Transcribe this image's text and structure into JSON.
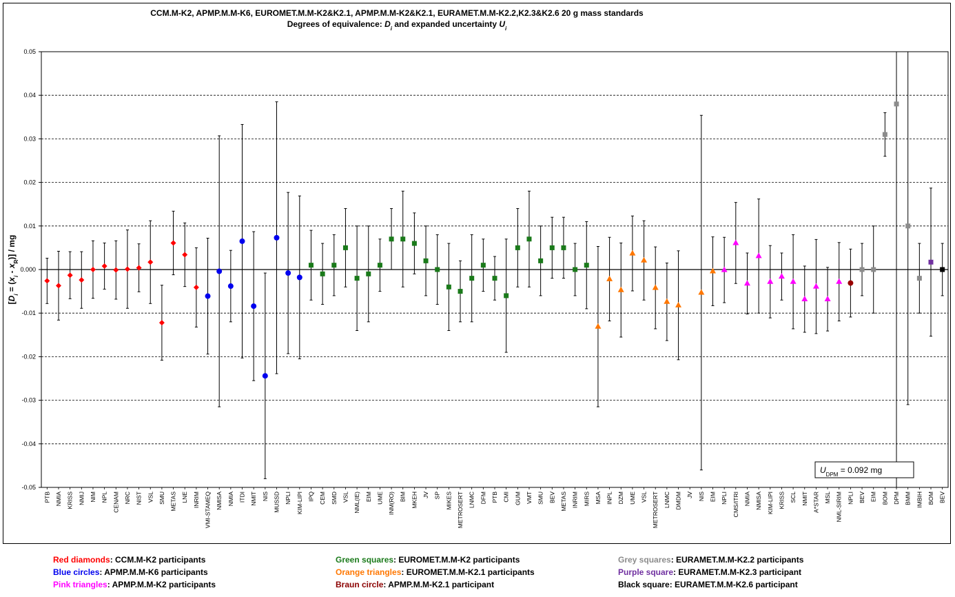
{
  "chart_data": {
    "type": "scatter",
    "title": "CCM.M-K2, APMP.M.M-K6, EUROMET.M.M-K2&K2.1, APMP.M.M-K2&K2.1, EURAMET.M.M-K2.2,K2.3&K2.6    20 g mass standards",
    "subtitle_prefix": "Degrees of equivalence: ",
    "subtitle_d": "D",
    "subtitle_di_sub": "i",
    "subtitle_mid": " and expanded uncertainty ",
    "subtitle_u": "U",
    "subtitle_ui_sub": "i",
    "ylabel": "[Di = (xi - xR)] / mg",
    "ylim": [
      -0.05,
      0.05
    ],
    "yticks": [
      "0.05",
      "0.04",
      "0.03",
      "0.02",
      "0.01",
      "0.000",
      "-0.01",
      "-0.02",
      "-0.03",
      "-0.04",
      "-0.05"
    ],
    "ytick_values": [
      0.05,
      0.04,
      0.03,
      0.02,
      0.01,
      0,
      -0.01,
      -0.02,
      -0.03,
      -0.04,
      -0.05
    ],
    "grid": "horizontal dashed",
    "annotation": {
      "prefix": "U",
      "sub": "DPM",
      "text": " = 0.092 mg"
    },
    "groups": {
      "red": {
        "color": "#ff0000",
        "marker": "diamond"
      },
      "blue": {
        "color": "#0000ee",
        "marker": "circle"
      },
      "green": {
        "color": "#1a7a1a",
        "marker": "square"
      },
      "orange": {
        "color": "#ff7700",
        "marker": "triangle"
      },
      "pink": {
        "color": "#ff00ff",
        "marker": "triangle"
      },
      "brown": {
        "color": "#990000",
        "marker": "circle"
      },
      "grey": {
        "color": "#8c8c8c",
        "marker": "square"
      },
      "purple": {
        "color": "#7030a0",
        "marker": "square"
      },
      "black": {
        "color": "#000000",
        "marker": "square"
      }
    },
    "points": [
      {
        "label": "PTB",
        "g": "red",
        "d": -0.0026,
        "u": 0.0052
      },
      {
        "label": "NMIA",
        "g": "red",
        "d": -0.0037,
        "u": 0.0079
      },
      {
        "label": "KRISS",
        "g": "red",
        "d": -0.0013,
        "u": 0.0054
      },
      {
        "label": "NMIJ",
        "g": "red",
        "d": -0.0024,
        "u": 0.0065
      },
      {
        "label": "NIM",
        "g": "red",
        "d": 0.0,
        "u": 0.0066
      },
      {
        "label": "NPL",
        "g": "red",
        "d": 0.0008,
        "u": 0.0053
      },
      {
        "label": "CENAM",
        "g": "red",
        "d": -0.0001,
        "u": 0.0067
      },
      {
        "label": "NRC",
        "g": "red",
        "d": 0.0001,
        "u": 0.009
      },
      {
        "label": "NIST",
        "g": "red",
        "d": 0.0004,
        "u": 0.0055
      },
      {
        "label": "VSL",
        "g": "red",
        "d": 0.0017,
        "u": 0.0095
      },
      {
        "label": "SMU",
        "g": "red",
        "d": -0.0122,
        "u": 0.0086
      },
      {
        "label": "METAS",
        "g": "red",
        "d": 0.0061,
        "u": 0.0073
      },
      {
        "label": "LNE",
        "g": "red",
        "d": 0.0034,
        "u": 0.0073
      },
      {
        "label": "INRIM",
        "g": "red",
        "d": -0.0041,
        "u": 0.0091
      },
      {
        "label": "VMI-STAMEQ",
        "g": "blue",
        "d": -0.0061,
        "u": 0.0133
      },
      {
        "label": "NMISA",
        "g": "blue",
        "d": -0.0004,
        "u": 0.0311
      },
      {
        "label": "NMIA",
        "g": "blue",
        "d": -0.0038,
        "u": 0.0082
      },
      {
        "label": "ITDI",
        "g": "blue",
        "d": 0.0065,
        "u": 0.0268
      },
      {
        "label": "NMIT",
        "g": "blue",
        "d": -0.0084,
        "u": 0.0171
      },
      {
        "label": "NIS",
        "g": "blue",
        "d": -0.0244,
        "u": 0.0236
      },
      {
        "label": "MUSSD",
        "g": "blue",
        "d": 0.0073,
        "u": 0.0312
      },
      {
        "label": "NPLI",
        "g": "blue",
        "d": -0.0008,
        "u": 0.0185
      },
      {
        "label": "KIM-LIPI",
        "g": "blue",
        "d": -0.0018,
        "u": 0.0187
      },
      {
        "label": "IPQ",
        "g": "green",
        "d": 0.001,
        "u": 0.008
      },
      {
        "label": "CEM",
        "g": "green",
        "d": -0.001,
        "u": 0.007
      },
      {
        "label": "SMD",
        "g": "green",
        "d": 0.001,
        "u": 0.007
      },
      {
        "label": "VSL",
        "g": "green",
        "d": 0.005,
        "u": 0.009
      },
      {
        "label": "NML(IE)",
        "g": "green",
        "d": -0.002,
        "u": 0.012
      },
      {
        "label": "EIM",
        "g": "green",
        "d": -0.001,
        "u": 0.011
      },
      {
        "label": "UME",
        "g": "green",
        "d": 0.001,
        "u": 0.006
      },
      {
        "label": "INM(RO)",
        "g": "green",
        "d": 0.007,
        "u": 0.007
      },
      {
        "label": "BIM",
        "g": "green",
        "d": 0.007,
        "u": 0.011
      },
      {
        "label": "MKEH",
        "g": "green",
        "d": 0.006,
        "u": 0.007
      },
      {
        "label": "JV",
        "g": "green",
        "d": 0.002,
        "u": 0.008
      },
      {
        "label": "SP",
        "g": "green",
        "d": 0.0,
        "u": 0.008
      },
      {
        "label": "MIKES",
        "g": "green",
        "d": -0.004,
        "u": 0.01
      },
      {
        "label": "METROSERT",
        "g": "green",
        "d": -0.005,
        "u": 0.007
      },
      {
        "label": "LNMC",
        "g": "green",
        "d": -0.002,
        "u": 0.01
      },
      {
        "label": "DFM",
        "g": "green",
        "d": 0.001,
        "u": 0.006
      },
      {
        "label": "PTB",
        "g": "green",
        "d": -0.002,
        "u": 0.005
      },
      {
        "label": "CMI",
        "g": "green",
        "d": -0.006,
        "u": 0.013
      },
      {
        "label": "GUM",
        "g": "green",
        "d": 0.005,
        "u": 0.009
      },
      {
        "label": "VMT",
        "g": "green",
        "d": 0.007,
        "u": 0.011
      },
      {
        "label": "SMU",
        "g": "green",
        "d": 0.002,
        "u": 0.008
      },
      {
        "label": "BEV",
        "g": "green",
        "d": 0.005,
        "u": 0.007
      },
      {
        "label": "METAS",
        "g": "green",
        "d": 0.005,
        "u": 0.007
      },
      {
        "label": "INRIM",
        "g": "green",
        "d": 0.0,
        "u": 0.006
      },
      {
        "label": "MIRS",
        "g": "green",
        "d": 0.001,
        "u": 0.01
      },
      {
        "label": "MSA",
        "g": "orange",
        "d": -0.0131,
        "u": 0.0184
      },
      {
        "label": "INPL",
        "g": "orange",
        "d": -0.0022,
        "u": 0.0096
      },
      {
        "label": "DZM",
        "g": "orange",
        "d": -0.0047,
        "u": 0.0108
      },
      {
        "label": "UME",
        "g": "orange",
        "d": 0.0037,
        "u": 0.0086
      },
      {
        "label": "VSL",
        "g": "orange",
        "d": 0.0021,
        "u": 0.0091
      },
      {
        "label": "METROSERT",
        "g": "orange",
        "d": -0.0042,
        "u": 0.0094
      },
      {
        "label": "LNMC",
        "g": "orange",
        "d": -0.0074,
        "u": 0.0089
      },
      {
        "label": "DMDM",
        "g": "orange",
        "d": -0.0082,
        "u": 0.0125
      },
      {
        "label": "JV",
        "g": "none",
        "d": null,
        "u": null
      },
      {
        "label": "NIS",
        "g": "orange",
        "d": -0.0053,
        "u": 0.0407
      },
      {
        "label": "EIM",
        "g": "orange",
        "d": -0.0004,
        "u": 0.0079
      },
      {
        "label": "NPLI",
        "g": "pink",
        "d": -0.0001,
        "u": 0.0075
      },
      {
        "label": "CMS/ITRI",
        "g": "pink",
        "d": 0.0061,
        "u": 0.0093
      },
      {
        "label": "NMIA",
        "g": "pink",
        "d": -0.0032,
        "u": 0.007
      },
      {
        "label": "NMISA",
        "g": "pink",
        "d": 0.0031,
        "u": 0.0131
      },
      {
        "label": "KIM-LIPI",
        "g": "pink",
        "d": -0.0028,
        "u": 0.0083
      },
      {
        "label": "KRISS",
        "g": "pink",
        "d": -0.0016,
        "u": 0.0054
      },
      {
        "label": "SCL",
        "g": "pink",
        "d": -0.0028,
        "u": 0.0108
      },
      {
        "label": "NMIT",
        "g": "pink",
        "d": -0.0068,
        "u": 0.0076
      },
      {
        "label": "A*STAR",
        "g": "pink",
        "d": -0.0039,
        "u": 0.0108
      },
      {
        "label": "MSL",
        "g": "pink",
        "d": -0.0068,
        "u": 0.0073
      },
      {
        "label": "NML-SIRIM",
        "g": "pink",
        "d": -0.0028,
        "u": 0.009
      },
      {
        "label": "NPLI",
        "g": "brown",
        "d": -0.0031,
        "u": 0.0078
      },
      {
        "label": "BEV",
        "g": "grey",
        "d": 0.0,
        "u": 0.006
      },
      {
        "label": "EIM",
        "g": "grey",
        "d": 0.0,
        "u": 0.01
      },
      {
        "label": "BOM",
        "g": "grey",
        "d": 0.031,
        "u": 0.005
      },
      {
        "label": "DPM",
        "g": "grey",
        "d": 0.038,
        "u": 0.092
      },
      {
        "label": "BMM",
        "g": "grey",
        "d": 0.01,
        "u": 0.041
      },
      {
        "label": "IMBIH",
        "g": "grey",
        "d": -0.002,
        "u": 0.008
      },
      {
        "label": "BOM",
        "g": "purple",
        "d": 0.0017,
        "u": 0.017
      },
      {
        "label": "BEV",
        "g": "black",
        "d": 0.0,
        "u": 0.006
      }
    ]
  },
  "legend": {
    "col1": [
      {
        "key": "Red diamonds",
        "rest": ": CCM.M-K2 participants",
        "color": "#ff0000"
      },
      {
        "key": "Blue circles",
        "rest": ": APMP.M.M-K6 participants",
        "color": "#0000ee"
      },
      {
        "key": "Pink triangles",
        "rest": ": APMP.M.M-K2 participants",
        "color": "#ff00ff"
      }
    ],
    "col2": [
      {
        "key": "Green squares",
        "rest": ": EUROMET.M.M-K2 participants",
        "color": "#1a7a1a"
      },
      {
        "key": "Orange triangles",
        "rest": ": EUROMET.M.M-K2.1 participants",
        "color": "#ff7700"
      },
      {
        "key": "Braun circle",
        "rest": ": APMP.M.M-K2.1 participant",
        "color": "#8b0000"
      }
    ],
    "col3": [
      {
        "key": "Grey squares",
        "rest": ": EURAMET.M.M-K2.2 participants",
        "color": "#8c8c8c"
      },
      {
        "key": "Purple square",
        "rest": ": EURAMET.M.M-K2.3 participant",
        "color": "#7030a0"
      },
      {
        "key": "Black square",
        "rest": ": EURAMET.M.M-K2.6 participant",
        "color": "#000000"
      }
    ]
  }
}
